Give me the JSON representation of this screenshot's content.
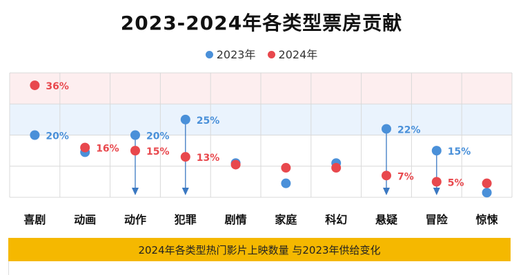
{
  "chart_data": {
    "type": "scatter",
    "title": "2023-2024年各类型票房贡献",
    "xlabel": "",
    "ylabel": "",
    "ylim": [
      0,
      40
    ],
    "legend_position": "top-center",
    "categories": [
      "喜剧",
      "动画",
      "动作",
      "犯罪",
      "剧情",
      "家庭",
      "科幻",
      "悬疑",
      "冒险",
      "惊悚"
    ],
    "series": [
      {
        "name": "2023年",
        "color": "#4A90D9",
        "values": [
          20,
          14.5,
          20,
          25,
          11,
          4.5,
          11,
          22,
          15,
          1.5
        ],
        "labels": [
          "20%",
          "",
          "20%",
          "25%",
          "",
          "",
          "",
          "22%",
          "15%",
          ""
        ]
      },
      {
        "name": "2024年",
        "color": "#E8484D",
        "values": [
          36,
          16,
          15,
          13,
          10.5,
          9.5,
          9.5,
          7,
          5,
          4.5
        ],
        "labels": [
          "36%",
          "16%",
          "15%",
          "13%",
          "",
          "",
          "",
          "7%",
          "5%",
          ""
        ]
      }
    ],
    "decline_arrows": [
      "动作",
      "犯罪",
      "悬疑",
      "冒险"
    ],
    "bands": [
      {
        "from": 30,
        "to": 40,
        "color": "#FDEEEF"
      },
      {
        "from": 20,
        "to": 30,
        "color": "#EAF3FD"
      }
    ],
    "grid": true
  },
  "banner": {
    "text": "2024年各类型热门影片上映数量 与2023年供给变化"
  }
}
